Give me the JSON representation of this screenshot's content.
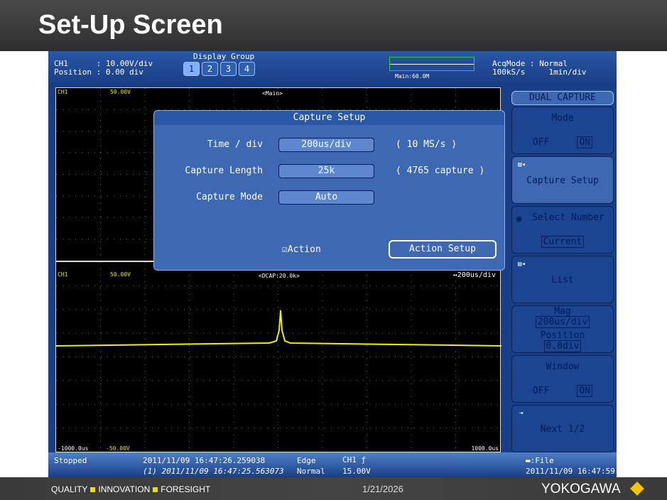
{
  "slide": {
    "title": "Set-Up Screen",
    "tagline": [
      "QUALITY",
      "INNOVATION",
      "FORESIGHT"
    ],
    "date": "1/21/2026",
    "logo": "YOKOGAWA",
    "accent": "#f5d800"
  },
  "topbar": {
    "ch_line": "CH1      : 10.00V/div",
    "pos_line": "Position : 0.00 div",
    "display_group_label": "Display Group",
    "groups": [
      "1",
      "2",
      "3",
      "4"
    ],
    "active_group": "1",
    "mini_label": "Main:60.0M",
    "acq_line": "AcqMode : Normal",
    "rate_line": "100kS/s     1min/div"
  },
  "upper": {
    "ch": "CH1",
    "vtop": "50.00V",
    "label": "<Main>"
  },
  "lower": {
    "ch": "CH1",
    "vtop": "50.00V",
    "label": "<DCAP:20.0k>",
    "tdiv": "↔200us/div",
    "vbot": "-50.00V",
    "tleft": "-1000.0us",
    "tright": "1000.0us",
    "trace_color": "#f0f000"
  },
  "dialog": {
    "title": "Capture Setup",
    "rows": [
      {
        "label": "Time / div",
        "value": "200us/div",
        "note": "( 10 MS/s )"
      },
      {
        "label": "Capture Length",
        "value": "25k",
        "note": "( 4765 capture )"
      },
      {
        "label": "Capture Mode",
        "value": "Auto",
        "note": ""
      }
    ],
    "action_checked": true,
    "action_label": "Action",
    "action_setup": "Action Setup"
  },
  "menu": {
    "title": "DUAL CAPTURE",
    "mode": {
      "label": "Mode",
      "off": "OFF",
      "on": "ON"
    },
    "capture_setup": "Capture Setup",
    "select_number": {
      "label": "Select Number",
      "value": "Current"
    },
    "list": "List",
    "mag": {
      "label": "Mag",
      "value": "200us/div",
      "pos_label": "Position",
      "pos_value": "0.0div"
    },
    "window": {
      "label": "Window",
      "off": "OFF",
      "on": "ON"
    },
    "next": "Next 1/2"
  },
  "status": {
    "state": "Stopped",
    "time1": "2011/11/09 16:47:26.259038",
    "time2": "(1) 2011/11/09 16:47:25.563073",
    "trig_type": "Edge",
    "trig_mode": "Normal",
    "trig_src": "CH1 ƒ",
    "trig_level": "15.00V",
    "file": "▬:File",
    "clock": "2011/11/09 16:47:59"
  }
}
